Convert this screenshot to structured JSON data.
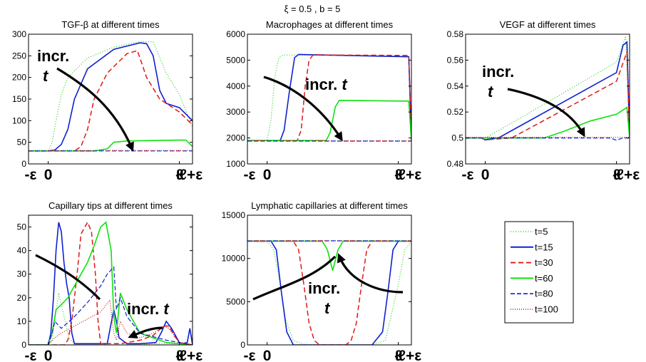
{
  "figure_title": "ξ = 0.5 , b = 5",
  "legend": {
    "entries": [
      {
        "label": "t=5",
        "color": "#22cc22",
        "dash": "1,2.5",
        "width": 1.2
      },
      {
        "label": "t=15",
        "color": "#1020d0",
        "dash": "",
        "width": 1.6
      },
      {
        "label": "t=30",
        "color": "#e01818",
        "dash": "7,4",
        "width": 1.5
      },
      {
        "label": "t=60",
        "color": "#10e010",
        "dash": "",
        "width": 1.6
      },
      {
        "label": "t=80",
        "color": "#1020d0",
        "dash": "6,3",
        "width": 1.2
      },
      {
        "label": "t=100",
        "color": "#cc1010",
        "dash": "1,2",
        "width": 1.2
      }
    ]
  },
  "x_tick_labels": [
    "-ε",
    "0",
    "ℓ",
    "ℓ+ε"
  ],
  "chart_data": [
    {
      "type": "line",
      "title": "TGF-β at different times",
      "ylim": [
        0,
        300
      ],
      "yticks": [
        0,
        50,
        100,
        150,
        200,
        250,
        300
      ],
      "annotation": {
        "line1": "incr.",
        "line2": "t"
      },
      "series": [
        {
          "name": "t=5",
          "x": [
            -0.15,
            0,
            0.03,
            0.06,
            0.1,
            0.15,
            0.3,
            0.5,
            0.7,
            0.8,
            0.9,
            1,
            1.1
          ],
          "y": [
            30,
            30,
            50,
            100,
            160,
            200,
            245,
            270,
            283,
            282,
            210,
            160,
            85
          ]
        },
        {
          "name": "t=15",
          "x": [
            -0.15,
            0,
            0.05,
            0.1,
            0.15,
            0.2,
            0.3,
            0.5,
            0.7,
            0.75,
            0.8,
            0.85,
            0.9,
            1,
            1.1
          ],
          "y": [
            30,
            30,
            32,
            45,
            80,
            150,
            220,
            265,
            280,
            278,
            250,
            170,
            140,
            130,
            100
          ]
        },
        {
          "name": "t=30",
          "x": [
            -0.15,
            0,
            0.2,
            0.25,
            0.3,
            0.35,
            0.45,
            0.6,
            0.68,
            0.75,
            0.85,
            1,
            1.1
          ],
          "y": [
            30,
            30,
            30,
            40,
            80,
            150,
            210,
            255,
            262,
            200,
            150,
            120,
            90
          ]
        },
        {
          "name": "t=60",
          "x": [
            -0.15,
            0.35,
            0.45,
            0.5,
            0.6,
            0.8,
            1,
            1.05,
            1.1
          ],
          "y": [
            30,
            30,
            35,
            50,
            53,
            54,
            55,
            55,
            40
          ]
        },
        {
          "name": "t=80",
          "x": [
            -0.15,
            1.1
          ],
          "y": [
            30,
            30
          ]
        },
        {
          "name": "t=100",
          "x": [
            -0.15,
            1.1
          ],
          "y": [
            31,
            31
          ]
        }
      ]
    },
    {
      "type": "line",
      "title": "Macrophages at different times",
      "ylim": [
        1000,
        6000
      ],
      "yticks": [
        1000,
        2000,
        3000,
        4000,
        5000,
        6000
      ],
      "annotation": {
        "line1": "incr. t",
        "line2": ""
      },
      "series": [
        {
          "name": "t=5",
          "x": [
            -0.15,
            0,
            0.03,
            0.06,
            0.09,
            0.12,
            1.08,
            1.1
          ],
          "y": [
            1900,
            1900,
            2700,
            4400,
            5100,
            5200,
            5150,
            1900
          ]
        },
        {
          "name": "t=15",
          "x": [
            -0.15,
            0,
            0.1,
            0.13,
            0.17,
            0.21,
            0.24,
            1.08,
            1.1
          ],
          "y": [
            1900,
            1900,
            1900,
            2300,
            3800,
            5100,
            5220,
            5130,
            1900
          ]
        },
        {
          "name": "t=30",
          "x": [
            -0.15,
            0.23,
            0.26,
            0.29,
            0.32,
            0.35,
            1.08,
            1.1
          ],
          "y": [
            1900,
            1900,
            2300,
            4000,
            5000,
            5200,
            5180,
            1900
          ]
        },
        {
          "name": "t=60",
          "x": [
            -0.15,
            0.45,
            0.48,
            0.52,
            0.55,
            1.08,
            1.1
          ],
          "y": [
            1900,
            1900,
            2200,
            3200,
            3450,
            3420,
            1900
          ]
        },
        {
          "name": "t=80",
          "x": [
            -0.15,
            1.1
          ],
          "y": [
            1880,
            1880
          ]
        },
        {
          "name": "t=100",
          "x": [
            -0.15,
            1.1
          ],
          "y": [
            1890,
            1890
          ]
        }
      ]
    },
    {
      "type": "line",
      "title": "VEGF at different times",
      "ylim": [
        0.48,
        0.58
      ],
      "yticks": [
        0.48,
        0.5,
        0.52,
        0.54,
        0.56,
        0.58
      ],
      "annotation": {
        "line1": "incr.",
        "line2": "t"
      },
      "series": [
        {
          "name": "t=5",
          "x": [
            -0.15,
            -0.03,
            0,
            0.2,
            0.5,
            0.8,
            1,
            1.07,
            1.1
          ],
          "y": [
            0.5,
            0.5,
            0.5,
            0.5115,
            0.5291,
            0.5467,
            0.5585,
            0.5786,
            0.5
          ]
        },
        {
          "name": "t=15",
          "x": [
            -0.15,
            -0.03,
            0,
            0.1,
            0.4,
            0.7,
            1,
            1.05,
            1.08,
            1.1
          ],
          "y": [
            0.5,
            0.5,
            0.4985,
            0.5,
            0.5168,
            0.5336,
            0.5504,
            0.5715,
            0.574,
            0.5
          ]
        },
        {
          "name": "t=30",
          "x": [
            -0.15,
            -0.03,
            0,
            0.2,
            0.5,
            0.8,
            1,
            1.08,
            1.1
          ],
          "y": [
            0.5,
            0.5,
            0.4985,
            0.5,
            0.5164,
            0.5328,
            0.5437,
            0.5663,
            0.5
          ]
        },
        {
          "name": "t=60",
          "x": [
            -0.15,
            0.45,
            0.6,
            0.8,
            1.0,
            1.08,
            1.1
          ],
          "y": [
            0.5,
            0.5,
            0.5051,
            0.5131,
            0.5183,
            0.5235,
            0.5
          ]
        },
        {
          "name": "t=80",
          "x": [
            -0.15,
            -0.03,
            0,
            0.05,
            0.95,
            1,
            1.05,
            1.1
          ],
          "y": [
            0.5,
            0.5,
            0.4985,
            0.5,
            0.5,
            0.4983,
            0.5,
            0.5
          ]
        },
        {
          "name": "t=100",
          "x": [
            -0.15,
            1.1
          ],
          "y": [
            0.5005,
            0.5005
          ]
        }
      ]
    },
    {
      "type": "line",
      "title": "Capillary tips at different times",
      "ylim": [
        0,
        55
      ],
      "yticks": [
        0,
        10,
        20,
        30,
        40,
        50
      ],
      "annotation": {
        "line1": "incr. t",
        "line2": ""
      },
      "series": [
        {
          "name": "t=5",
          "x": [
            -0.15,
            0,
            0.03,
            0.05,
            0.08,
            0.12,
            0.16,
            0.2,
            0.25,
            0.3,
            0.35,
            0.4,
            0.45,
            0.5,
            0.7,
            0.8,
            0.9,
            1.0,
            1.05,
            1.1
          ],
          "y": [
            0,
            0,
            2,
            10,
            22,
            12,
            3,
            0.5,
            0,
            0,
            0,
            0,
            0,
            0,
            0,
            0.5,
            0.5,
            0.5,
            0.2,
            0
          ]
        },
        {
          "name": "t=15",
          "x": [
            -0.15,
            0,
            0.02,
            0.04,
            0.06,
            0.08,
            0.1,
            0.12,
            0.14,
            0.16,
            0.18,
            0.2,
            0.3,
            0.45,
            0.5,
            0.52,
            0.54,
            0.6,
            0.7,
            0.82,
            0.86,
            0.9,
            0.94,
            0.98,
            1.0,
            1.02,
            1.06,
            1.08,
            1.1
          ],
          "y": [
            0,
            0,
            5,
            20,
            40,
            52,
            48,
            35,
            26,
            20,
            5,
            0.5,
            0.5,
            0.5,
            15,
            10,
            3,
            0.5,
            0.5,
            1,
            5,
            10,
            7,
            3,
            1,
            0.5,
            1,
            7,
            0
          ]
        },
        {
          "name": "t=30",
          "x": [
            -0.15,
            0.12,
            0.15,
            0.18,
            0.22,
            0.25,
            0.3,
            0.33,
            0.36,
            0.38,
            0.4,
            0.45,
            0.55,
            0.6,
            0.7,
            0.8,
            0.88,
            0.92,
            0.96,
            1.0,
            1.05,
            1.1
          ],
          "y": [
            0,
            0,
            2,
            10,
            30,
            47,
            52,
            48,
            30,
            10,
            0.5,
            0.5,
            0.5,
            1,
            2,
            4,
            8,
            8,
            4,
            1,
            0.5,
            0
          ]
        },
        {
          "name": "t=60",
          "x": [
            -0.15,
            0,
            0.03,
            0.06,
            0.1,
            0.15,
            0.2,
            0.25,
            0.3,
            0.35,
            0.4,
            0.44,
            0.48,
            0.5,
            0.52,
            0.55,
            0.6,
            0.7,
            0.9,
            1.0,
            1.1
          ],
          "y": [
            0,
            0,
            5,
            15,
            17,
            20,
            25,
            30,
            35,
            42,
            50,
            52,
            40,
            12,
            5,
            22,
            15,
            5,
            1,
            0.5,
            0
          ]
        },
        {
          "name": "t=80",
          "x": [
            -0.15,
            0,
            0.03,
            0.05,
            0.1,
            0.2,
            0.3,
            0.4,
            0.45,
            0.5,
            0.52,
            0.55,
            0.6,
            0.7,
            0.9,
            1.0,
            1.05,
            1.1
          ],
          "y": [
            0,
            0,
            5,
            10,
            7,
            12,
            18,
            25,
            30,
            33,
            15,
            20,
            12,
            5,
            2,
            1,
            0.5,
            0
          ]
        },
        {
          "name": "t=100",
          "x": [
            -0.15,
            0,
            0.05,
            0.1,
            0.2,
            0.3,
            0.4,
            0.47,
            0.5,
            0.52,
            0.55,
            0.6,
            0.7,
            0.8,
            0.88,
            0.92,
            0.96,
            1.0,
            1.1
          ],
          "y": [
            0,
            0,
            3,
            5,
            8,
            11,
            14,
            19,
            5,
            2,
            10,
            5,
            3,
            5,
            8,
            7,
            4,
            1,
            0
          ]
        }
      ]
    },
    {
      "type": "line",
      "title": "Lymphatic capillaries at different times",
      "ylim": [
        0,
        15000
      ],
      "yticks": [
        0,
        5000,
        10000,
        15000
      ],
      "annotation": {
        "line1": "incr.",
        "line2": "t"
      },
      "series": [
        {
          "name": "t=5",
          "x": [
            -0.15,
            0,
            0.05,
            0.1,
            0.14,
            0.2,
            0.3,
            0.8,
            0.9,
            0.94,
            1.0,
            1.05,
            1.1
          ],
          "y": [
            12000,
            12000,
            11000,
            7000,
            3000,
            500,
            0,
            0,
            500,
            3000,
            7000,
            11000,
            12000
          ]
        },
        {
          "name": "t=15",
          "x": [
            -0.15,
            0.03,
            0.07,
            0.11,
            0.15,
            0.2,
            0.3,
            0.8,
            0.88,
            0.92,
            0.96,
            1.0,
            1.1
          ],
          "y": [
            12000,
            12000,
            11000,
            6000,
            1500,
            0,
            0,
            0,
            1500,
            6000,
            11000,
            12000,
            12000
          ]
        },
        {
          "name": "t=30",
          "x": [
            -0.15,
            0.2,
            0.24,
            0.28,
            0.32,
            0.36,
            0.4,
            0.6,
            0.64,
            0.68,
            0.72,
            0.76,
            0.8,
            1.1
          ],
          "y": [
            12000,
            12000,
            11000,
            7000,
            2500,
            500,
            0,
            0,
            500,
            2500,
            7000,
            11000,
            12000,
            12000
          ]
        },
        {
          "name": "t=60",
          "x": [
            -0.15,
            0.42,
            0.46,
            0.5,
            0.54,
            0.58,
            1.1
          ],
          "y": [
            12000,
            12000,
            11000,
            8600,
            11000,
            12000,
            12000
          ]
        },
        {
          "name": "t=80",
          "x": [
            -0.15,
            1.1
          ],
          "y": [
            12030,
            12030
          ]
        },
        {
          "name": "t=100",
          "x": [
            -0.15,
            1.1
          ],
          "y": [
            12060,
            12060
          ]
        }
      ]
    }
  ]
}
